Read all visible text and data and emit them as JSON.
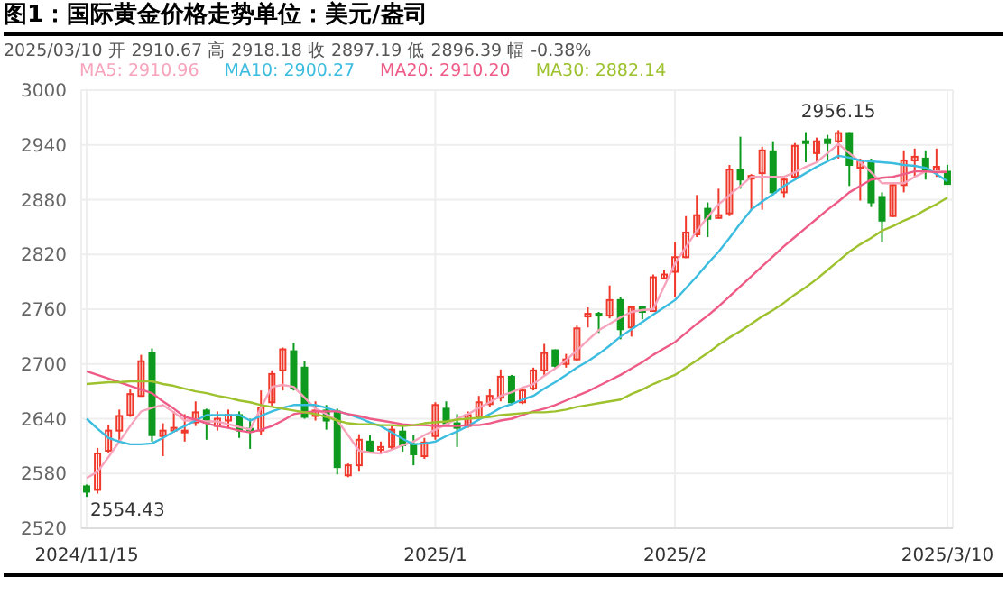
{
  "chart_data": {
    "type": "candlestick",
    "title": "图1：国际黄金价格走势单位：美元/盎司",
    "annotations": [
      "2025/03/10 开 2910.67 高 2918.18 收 2897.19 低 2896.39 幅 -0.38%",
      "2956.15",
      "2554.43"
    ],
    "categories": [
      "2024/11/15",
      null,
      null,
      null,
      null,
      null,
      null,
      null,
      null,
      null,
      null,
      null,
      null,
      null,
      null,
      null,
      null,
      null,
      null,
      null,
      null,
      null,
      null,
      null,
      null,
      null,
      null,
      null,
      null,
      null,
      null,
      null,
      "2025/1",
      null,
      null,
      null,
      null,
      null,
      null,
      null,
      null,
      null,
      null,
      null,
      null,
      null,
      null,
      null,
      null,
      null,
      null,
      null,
      null,
      null,
      "2025/2",
      null,
      null,
      null,
      null,
      null,
      null,
      null,
      null,
      null,
      null,
      null,
      null,
      null,
      null,
      null,
      null,
      null,
      null,
      null,
      null,
      null,
      null,
      null,
      null,
      "2025/3/10"
    ],
    "series": [
      {
        "ohlc": [
          [
            2566,
            2568,
            2554.43,
            2560
          ],
          [
            2562,
            2608,
            2558,
            2602
          ],
          [
            2605,
            2633,
            2603,
            2627
          ],
          [
            2627,
            2650,
            2615,
            2643
          ],
          [
            2644,
            2672,
            2642,
            2667
          ],
          [
            2665,
            2710,
            2664,
            2703
          ],
          [
            2712,
            2717,
            2615,
            2622
          ],
          [
            2621,
            2635,
            2599,
            2627
          ],
          [
            2627,
            2648,
            2625,
            2630
          ],
          [
            2625,
            2645,
            2615,
            2627
          ],
          [
            2636,
            2659,
            2632,
            2647
          ],
          [
            2649,
            2651,
            2617,
            2636
          ],
          [
            2632,
            2648,
            2627,
            2640
          ],
          [
            2638,
            2650,
            2630,
            2644
          ],
          [
            2644,
            2648,
            2619,
            2627
          ],
          [
            2629,
            2640,
            2607,
            2627
          ],
          [
            2627,
            2671,
            2622,
            2652
          ],
          [
            2658,
            2693,
            2654,
            2689
          ],
          [
            2693,
            2718,
            2671,
            2716
          ],
          [
            2714,
            2723,
            2671,
            2673
          ],
          [
            2696,
            2703,
            2640,
            2642
          ],
          [
            2643,
            2659,
            2638,
            2649
          ],
          [
            2649,
            2655,
            2628,
            2638
          ],
          [
            2648,
            2651,
            2579,
            2587
          ],
          [
            2578,
            2591,
            2576,
            2589
          ],
          [
            2589,
            2623,
            2582,
            2617
          ],
          [
            2615,
            2622,
            2602,
            2605
          ],
          [
            2606,
            2615,
            2602,
            2609
          ],
          [
            2609,
            2632,
            2605,
            2628
          ],
          [
            2626,
            2632,
            2604,
            2611
          ],
          [
            2612,
            2622,
            2589,
            2601
          ],
          [
            2599,
            2619,
            2596,
            2614
          ],
          [
            2621,
            2658,
            2617,
            2655
          ],
          [
            2651,
            2659,
            2632,
            2635
          ],
          [
            2635,
            2645,
            2609,
            2630
          ],
          [
            2632,
            2648,
            2630,
            2644
          ],
          [
            2642,
            2665,
            2638,
            2658
          ],
          [
            2656,
            2673,
            2653,
            2665
          ],
          [
            2663,
            2694,
            2659,
            2686
          ],
          [
            2686,
            2688,
            2655,
            2658
          ],
          [
            2658,
            2675,
            2656,
            2671
          ],
          [
            2673,
            2696,
            2671,
            2693
          ],
          [
            2693,
            2722,
            2688,
            2712
          ],
          [
            2715,
            2716,
            2696,
            2698
          ],
          [
            2700,
            2711,
            2696,
            2705
          ],
          [
            2705,
            2742,
            2703,
            2739
          ],
          [
            2752,
            2762,
            2740,
            2755
          ],
          [
            2755,
            2757,
            2734,
            2753
          ],
          [
            2753,
            2786,
            2750,
            2770
          ],
          [
            2770,
            2773,
            2727,
            2738
          ],
          [
            2740,
            2763,
            2730,
            2762
          ],
          [
            2762,
            2763,
            2749,
            2757
          ],
          [
            2758,
            2798,
            2757,
            2795
          ],
          [
            2794,
            2803,
            2793,
            2798
          ],
          [
            2801,
            2834,
            2773,
            2817
          ],
          [
            2817,
            2862,
            2816,
            2844
          ],
          [
            2842,
            2885,
            2839,
            2863
          ],
          [
            2870,
            2877,
            2839,
            2859
          ],
          [
            2860,
            2892,
            2859,
            2863
          ],
          [
            2865,
            2918,
            2862,
            2913
          ],
          [
            2913,
            2949,
            2892,
            2902
          ],
          [
            2903,
            2908,
            2869,
            2906
          ],
          [
            2909,
            2938,
            2869,
            2934
          ],
          [
            2933,
            2944,
            2885,
            2888
          ],
          [
            2888,
            2905,
            2882,
            2902
          ],
          [
            2905,
            2942,
            2903,
            2939
          ],
          [
            2944,
            2954,
            2921,
            2942
          ],
          [
            2931,
            2948,
            2921,
            2944
          ],
          [
            2946,
            2951,
            2921,
            2942
          ],
          [
            2944,
            2956.15,
            2925,
            2953
          ],
          [
            2953,
            2954,
            2895,
            2918
          ],
          [
            2915,
            2925,
            2879,
            2923
          ],
          [
            2921,
            2925,
            2872,
            2877
          ],
          [
            2883,
            2888,
            2834,
            2857
          ],
          [
            2862,
            2898,
            2861,
            2896
          ],
          [
            2896,
            2934,
            2888,
            2923
          ],
          [
            2923,
            2936,
            2905,
            2927
          ],
          [
            2925,
            2934,
            2902,
            2913
          ],
          [
            2911,
            2936,
            2905,
            2916
          ],
          [
            2910.67,
            2918.18,
            2896.39,
            2897.19
          ]
        ],
        "colors": [
          "#0e9a1e",
          "#f0392b",
          "#f0392b",
          "#f0392b",
          "#f0392b",
          "#f0392b",
          "#0e9a1e",
          "#f0392b",
          "#f0392b",
          "#f0392b",
          "#f0392b",
          "#0e9a1e",
          "#f0392b",
          "#f0392b",
          "#0e9a1e",
          "#0e9a1e",
          "#f0392b",
          "#f0392b",
          "#f0392b",
          "#0e9a1e",
          "#0e9a1e",
          "#f0392b",
          "#0e9a1e",
          "#0e9a1e",
          "#f0392b",
          "#f0392b",
          "#0e9a1e",
          "#f0392b",
          "#f0392b",
          "#0e9a1e",
          "#0e9a1e",
          "#f0392b",
          "#f0392b",
          "#0e9a1e",
          "#0e9a1e",
          "#f0392b",
          "#f0392b",
          "#f0392b",
          "#f0392b",
          "#0e9a1e",
          "#f0392b",
          "#f0392b",
          "#f0392b",
          "#0e9a1e",
          "#f0392b",
          "#f0392b",
          "#f0392b",
          "#0e9a1e",
          "#f0392b",
          "#0e9a1e",
          "#f0392b",
          "#0e9a1e",
          "#f0392b",
          "#f0392b",
          "#f0392b",
          "#f0392b",
          "#f0392b",
          "#0e9a1e",
          "#f0392b",
          "#f0392b",
          "#0e9a1e",
          "#f0392b",
          "#f0392b",
          "#0e9a1e",
          "#f0392b",
          "#f0392b",
          "#0e9a1e",
          "#f0392b",
          "#0e9a1e",
          "#f0392b",
          "#0e9a1e",
          "#f0392b",
          "#0e9a1e",
          "#0e9a1e",
          "#f0392b",
          "#f0392b",
          "#f0392b",
          "#0e9a1e",
          "#f0392b",
          "#0e9a1e"
        ]
      },
      {
        "type": "line",
        "name": "MA5: 2910.96",
        "color": "#f7a3bb",
        "values": [
          2575,
          2582,
          2598,
          2615,
          2632,
          2648,
          2652,
          2655,
          2647,
          2638,
          2638,
          2637,
          2637,
          2634,
          2631,
          2628,
          2652,
          2675,
          2677,
          2675,
          2663,
          2651,
          2645,
          2638,
          2622,
          2605,
          2603,
          2602,
          2606,
          2611,
          2615,
          2622,
          2628,
          2634,
          2640,
          2645,
          2652,
          2658,
          2665,
          2669,
          2674,
          2678,
          2687,
          2695,
          2704,
          2715,
          2726,
          2737,
          2744,
          2751,
          2757,
          2759,
          2760,
          2785,
          2810,
          2828,
          2846,
          2861,
          2875,
          2885,
          2895,
          2905,
          2905,
          2905,
          2905,
          2910,
          2916,
          2921,
          2931,
          2941,
          2931,
          2921,
          2910,
          2898,
          2898,
          2898,
          2905,
          2911,
          2911,
          2910.96
        ]
      },
      {
        "type": "line",
        "name": "MA10: 2900.27",
        "color": "#3cbde0",
        "values": [
          2640,
          2629,
          2619,
          2615,
          2612,
          2612,
          2613,
          2619,
          2626,
          2632,
          2638,
          2644,
          2644,
          2644,
          2644,
          2638,
          2643,
          2648,
          2652,
          2655,
          2655,
          2655,
          2652,
          2648,
          2645,
          2641,
          2636,
          2632,
          2625,
          2618,
          2612,
          2613,
          2615,
          2621,
          2626,
          2632,
          2639,
          2645,
          2652,
          2656,
          2661,
          2665,
          2673,
          2680,
          2688,
          2696,
          2703,
          2711,
          2720,
          2730,
          2738,
          2746,
          2754,
          2762,
          2770,
          2783,
          2796,
          2810,
          2823,
          2838,
          2854,
          2869,
          2878,
          2886,
          2895,
          2902,
          2909,
          2916,
          2922,
          2928,
          2926,
          2923,
          2922,
          2921,
          2920,
          2918,
          2917,
          2915,
          2908,
          2900.27
        ]
      },
      {
        "type": "line",
        "name": "MA20: 2910.20",
        "color": "#ee5b87",
        "values": [
          2692,
          2688,
          2684,
          2680,
          2676,
          2672,
          2668,
          2659,
          2651,
          2642,
          2639,
          2635,
          2632,
          2630,
          2627,
          2625,
          2628,
          2632,
          2638,
          2645,
          2647,
          2648,
          2648,
          2648,
          2645,
          2643,
          2640,
          2638,
          2636,
          2634,
          2633,
          2633,
          2632,
          2632,
          2632,
          2633,
          2633,
          2635,
          2638,
          2640,
          2644,
          2648,
          2651,
          2655,
          2660,
          2665,
          2670,
          2676,
          2682,
          2688,
          2695,
          2702,
          2710,
          2717,
          2724,
          2734,
          2744,
          2753,
          2763,
          2774,
          2785,
          2796,
          2807,
          2818,
          2829,
          2839,
          2849,
          2859,
          2869,
          2878,
          2888,
          2895,
          2902,
          2904,
          2905,
          2908,
          2911,
          2911,
          2910,
          2910.2
        ]
      },
      {
        "type": "line",
        "name": "MA30: 2882.14",
        "color": "#9dc22e",
        "values": [
          2678,
          2679,
          2680,
          2680,
          2681,
          2681,
          2681,
          2678,
          2676,
          2673,
          2670,
          2668,
          2665,
          2663,
          2660,
          2658,
          2655,
          2653,
          2651,
          2649,
          2647,
          2645,
          2642,
          2638,
          2635,
          2634,
          2634,
          2633,
          2633,
          2632,
          2633,
          2635,
          2636,
          2637,
          2639,
          2640,
          2641,
          2642,
          2644,
          2645,
          2646,
          2647,
          2647,
          2648,
          2650,
          2653,
          2655,
          2657,
          2659,
          2661,
          2667,
          2672,
          2678,
          2683,
          2688,
          2696,
          2704,
          2712,
          2721,
          2729,
          2736,
          2744,
          2752,
          2759,
          2767,
          2776,
          2784,
          2793,
          2803,
          2813,
          2823,
          2831,
          2838,
          2846,
          2851,
          2857,
          2862,
          2869,
          2875,
          2882.14
        ]
      }
    ],
    "ylim": [
      2520,
      3000
    ],
    "yticks": [
      2520,
      2580,
      2640,
      2700,
      2760,
      2820,
      2880,
      2940,
      3000
    ],
    "grid": true,
    "legend": "top left"
  }
}
